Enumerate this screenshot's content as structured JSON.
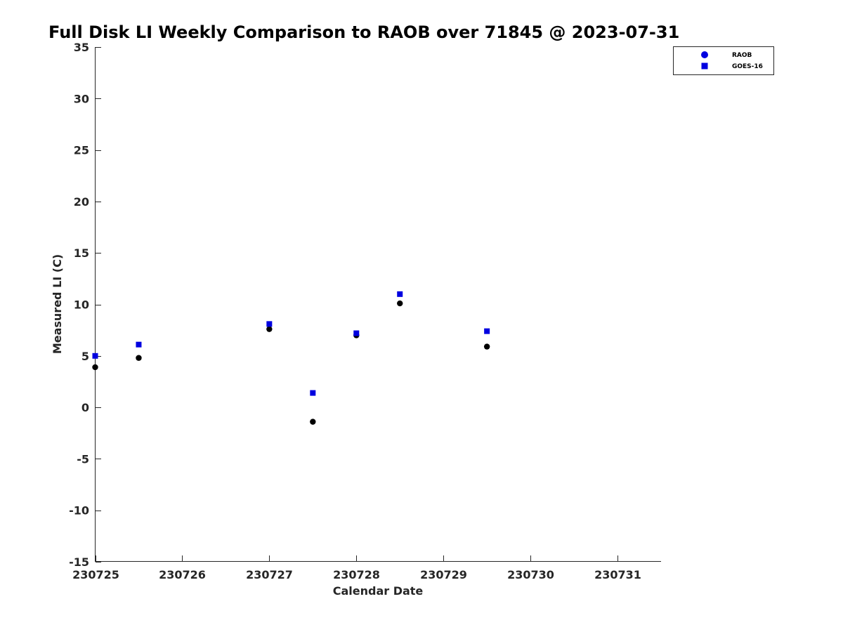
{
  "chart_data": {
    "type": "scatter",
    "title": "Full Disk LI Weekly Comparison to RAOB over 71845 @ 2023-07-31",
    "xlabel": "Calendar Date",
    "ylabel": "Measured LI (C)",
    "xlim": [
      "2023-07-25",
      "2023-07-31T12:00"
    ],
    "ylim": [
      -15,
      35
    ],
    "x_ticks": [
      "230725",
      "230726",
      "230727",
      "230728",
      "230729",
      "230730",
      "230731"
    ],
    "y_ticks": [
      "35",
      "30",
      "25",
      "20",
      "15",
      "10",
      "5",
      "0",
      "-5",
      "-10",
      "-15"
    ],
    "grid": false,
    "legend_position": "top-right",
    "series": [
      {
        "name": "RAOB",
        "marker": "circle",
        "color": "#000000",
        "legend_color": "#0000e0",
        "points": [
          {
            "x": "2023-07-25T00:00",
            "y": 3.9
          },
          {
            "x": "2023-07-25T12:00",
            "y": 4.8
          },
          {
            "x": "2023-07-27T00:00",
            "y": 7.6
          },
          {
            "x": "2023-07-27T12:00",
            "y": -1.4
          },
          {
            "x": "2023-07-28T00:00",
            "y": 7.0
          },
          {
            "x": "2023-07-28T12:00",
            "y": 10.1
          },
          {
            "x": "2023-07-29T12:00",
            "y": 5.9
          }
        ]
      },
      {
        "name": "GOES-16",
        "marker": "square",
        "color": "#0000e0",
        "legend_color": "#0000e0",
        "points": [
          {
            "x": "2023-07-25T00:00",
            "y": 5.0
          },
          {
            "x": "2023-07-25T12:00",
            "y": 6.1
          },
          {
            "x": "2023-07-27T00:00",
            "y": 8.1
          },
          {
            "x": "2023-07-27T12:00",
            "y": 1.4
          },
          {
            "x": "2023-07-28T00:00",
            "y": 7.2
          },
          {
            "x": "2023-07-28T12:00",
            "y": 11.0
          },
          {
            "x": "2023-07-29T12:00",
            "y": 7.4
          }
        ]
      }
    ]
  }
}
